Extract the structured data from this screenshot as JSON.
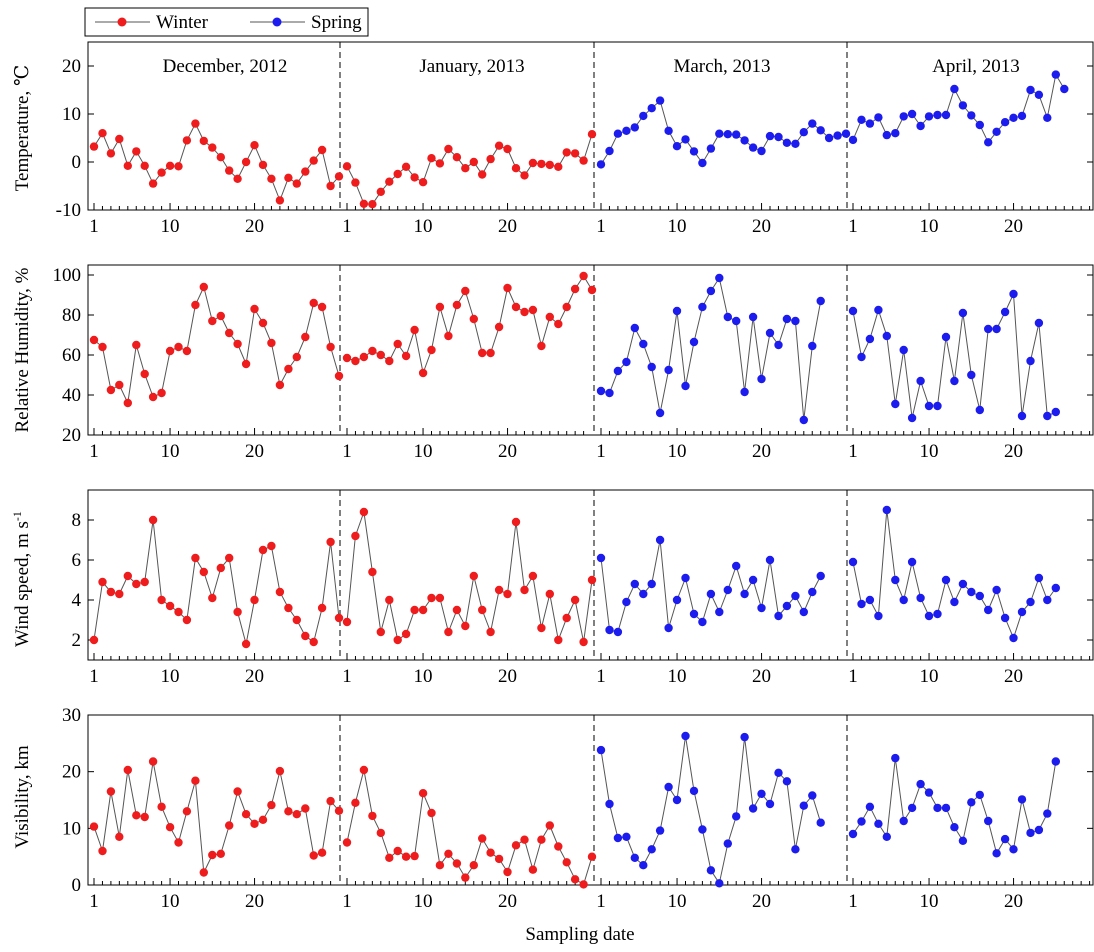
{
  "chart_data": {
    "type": "line",
    "xlabel": "Sampling date",
    "legend": {
      "placement": "top-left",
      "entries": [
        {
          "name": "Winter",
          "color": "#ee1c1c"
        },
        {
          "name": "Spring",
          "color": "#1c1cee"
        }
      ]
    },
    "periods": [
      {
        "label": "December, 2012",
        "season": "Winter",
        "start_day": 1,
        "tick_labels": [
          "1",
          "10",
          "20"
        ],
        "tick_values": [
          1,
          10,
          20
        ]
      },
      {
        "label": "January, 2013",
        "season": "Winter",
        "start_day": 1,
        "tick_labels": [
          "1",
          "10",
          "20"
        ],
        "tick_values": [
          1,
          10,
          20
        ]
      },
      {
        "label": "March, 2013",
        "season": "Spring",
        "start_day": 1,
        "tick_labels": [
          "1",
          "10",
          "20"
        ],
        "tick_values": [
          1,
          10,
          20
        ]
      },
      {
        "label": "April, 2013",
        "season": "Spring",
        "start_day": 1,
        "tick_labels": [
          "1",
          "10",
          "20"
        ],
        "tick_values": [
          1,
          10,
          20
        ]
      }
    ],
    "panels": [
      {
        "ylabel": "Temperature, ℃",
        "ylim": [
          -10,
          25
        ],
        "yticks": [
          -10,
          0,
          10,
          20
        ],
        "series": [
          [
            3.2,
            6,
            1.8,
            4.8,
            -0.8,
            2.2,
            -0.8,
            -4.5,
            -2.2,
            -0.8,
            -0.9,
            4.5,
            8,
            4.4,
            3,
            1,
            -1.8,
            -3.5,
            0,
            3.5,
            -0.6,
            -3.5,
            -8,
            -3.3,
            -4.5,
            -2,
            0.3,
            2.5,
            -5,
            -3
          ],
          [
            -0.9,
            -4.3,
            -8.7,
            -8.8,
            -6.2,
            -4.1,
            -2.5,
            -1,
            -3.2,
            -4.2,
            0.8,
            -0.3,
            2.7,
            1,
            -1.3,
            0,
            -2.6,
            0.6,
            3.4,
            2.7,
            -1.3,
            -2.8,
            -0.2,
            -0.4,
            -0.6,
            -1,
            2,
            1.8,
            0.3,
            5.8
          ],
          [
            -0.5,
            2.3,
            5.9,
            6.5,
            7.2,
            9.6,
            11.2,
            12.8,
            6.5,
            3.3,
            4.7,
            2.2,
            -0.2,
            2.8,
            5.9,
            5.8,
            5.7,
            4.5,
            3,
            2.3,
            5.4,
            5.2,
            4,
            3.8,
            6.2,
            8,
            6.6,
            5,
            5.5,
            5.9
          ],
          [
            4.6,
            8.8,
            8,
            9.3,
            5.6,
            6,
            9.5,
            10,
            7.5,
            9.5,
            9.8,
            9.8,
            15.2,
            11.8,
            9.7,
            7.7,
            4.1,
            6.3,
            8.3,
            9.2,
            9.6,
            15,
            14,
            9.2,
            18.2,
            15.2
          ]
        ]
      },
      {
        "ylabel": "Relative Humidity, %",
        "ylim": [
          20,
          105
        ],
        "yticks": [
          20,
          40,
          60,
          80,
          100
        ],
        "series": [
          [
            67.5,
            64,
            42.5,
            45,
            36,
            65,
            50.5,
            39,
            41,
            62,
            64,
            62,
            85,
            94,
            77,
            79.5,
            71,
            65.5,
            55.5,
            83,
            76,
            66,
            45,
            53,
            59,
            69,
            86,
            84,
            64,
            49.5
          ],
          [
            58.5,
            57,
            59,
            62,
            60,
            57,
            65.5,
            59.5,
            72.5,
            51,
            62.5,
            84,
            69.5,
            85,
            92,
            78,
            61,
            61,
            74,
            93.5,
            84,
            81.5,
            82.5,
            64.5,
            79,
            75.5,
            84,
            93,
            99.5,
            92.5
          ],
          [
            42,
            41,
            52,
            56.5,
            73.5,
            65.5,
            54,
            31,
            52.5,
            82,
            44.5,
            66.5,
            84,
            92,
            98.5,
            79,
            77,
            41.5,
            79,
            48,
            71,
            65,
            78,
            77,
            27.5,
            64.5,
            87
          ],
          [
            82,
            59,
            68,
            82.5,
            69.5,
            35.5,
            62.5,
            28.5,
            47,
            34.5,
            34.5,
            69,
            47,
            81,
            50,
            32.5,
            73,
            73,
            81.5,
            90.5,
            29.5,
            57,
            76,
            29.5,
            31.5
          ]
        ]
      },
      {
        "ylabel": "Wind speed, m s-1",
        "ylim": [
          1,
          9.5
        ],
        "yticks": [
          2,
          4,
          6,
          8
        ],
        "series": [
          [
            2,
            4.9,
            4.4,
            4.3,
            5.2,
            4.8,
            4.9,
            8,
            4,
            3.7,
            3.4,
            3,
            6.1,
            5.4,
            4.1,
            5.6,
            6.1,
            3.4,
            1.8,
            4,
            6.5,
            6.7,
            4.4,
            3.6,
            3,
            2.2,
            1.9,
            3.6,
            6.9,
            3.1
          ],
          [
            2.9,
            7.2,
            8.4,
            5.4,
            2.4,
            4,
            2,
            2.3,
            3.5,
            3.5,
            4.1,
            4.1,
            2.4,
            3.5,
            2.7,
            5.2,
            3.5,
            2.4,
            4.5,
            4.3,
            7.9,
            4.5,
            5.2,
            2.6,
            4.3,
            2,
            3.1,
            4,
            1.9,
            5
          ],
          [
            6.1,
            2.5,
            2.4,
            3.9,
            4.8,
            4.3,
            4.8,
            7,
            2.6,
            4,
            5.1,
            3.3,
            2.9,
            4.3,
            3.4,
            4.5,
            5.7,
            4.3,
            5,
            3.6,
            6,
            3.2,
            3.7,
            4.2,
            3.4,
            4.4,
            5.2
          ],
          [
            5.9,
            3.8,
            4,
            3.2,
            8.5,
            5,
            4,
            5.9,
            4.1,
            3.2,
            3.3,
            5,
            3.9,
            4.8,
            4.4,
            4.2,
            3.5,
            4.5,
            3.1,
            2.1,
            3.4,
            3.9,
            5.1,
            4,
            4.6
          ]
        ]
      },
      {
        "ylabel": "Visibility, km",
        "ylim": [
          0,
          30
        ],
        "yticks": [
          0,
          10,
          20,
          30
        ],
        "series": [
          [
            10.3,
            6,
            16.5,
            8.5,
            20.3,
            12.3,
            12,
            21.8,
            13.8,
            10.2,
            7.5,
            13,
            18.4,
            2.2,
            5.3,
            5.5,
            10.5,
            16.5,
            12.5,
            10.8,
            11.5,
            14.1,
            20.1,
            13,
            12.5,
            13.5,
            5.2,
            5.7,
            14.8,
            13.1
          ],
          [
            7.5,
            14.5,
            20.3,
            12.2,
            9.2,
            4.8,
            6,
            5,
            5.1,
            16.2,
            12.7,
            3.5,
            5.5,
            3.8,
            1.3,
            3.5,
            8.2,
            5.7,
            4.6,
            2.3,
            7,
            8,
            2.7,
            8,
            10.5,
            6.8,
            4,
            1,
            0.1,
            5
          ],
          [
            23.8,
            14.3,
            8.3,
            8.5,
            4.8,
            3.5,
            6.3,
            9.6,
            17.3,
            15,
            26.3,
            16.6,
            9.8,
            2.6,
            0.3,
            7.3,
            12.1,
            26.1,
            13.5,
            16.1,
            14.3,
            19.8,
            18.3,
            6.3,
            14,
            15.8,
            11
          ],
          [
            9,
            11.2,
            13.8,
            10.8,
            8.5,
            22.4,
            11.3,
            13.6,
            17.8,
            16.3,
            13.6,
            13.6,
            10.2,
            7.8,
            14.6,
            15.9,
            11.3,
            5.6,
            8.1,
            6.3,
            15.1,
            9.2,
            9.7,
            12.6,
            21.8
          ]
        ]
      }
    ]
  }
}
